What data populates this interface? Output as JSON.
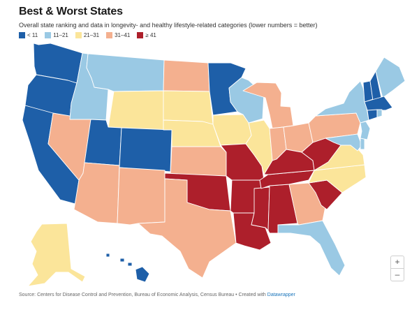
{
  "header": {
    "title": "Best & Worst States",
    "subtitle": "Overall state ranking and data in longevity- and healthy lifestyle-related categories (lower numbers = better)"
  },
  "legend": [
    {
      "label": "< 11",
      "color": "#1e5fa8"
    },
    {
      "label": "11–21",
      "color": "#9ac9e4"
    },
    {
      "label": "21–31",
      "color": "#fbe59a"
    },
    {
      "label": "31–41",
      "color": "#f4b08f"
    },
    {
      "label": "≥ 41",
      "color": "#ad1f2b"
    }
  ],
  "map": {
    "projection": "Albers USA",
    "state_tiers": {
      "WA": 0,
      "OR": 0,
      "CA": 0,
      "UT": 0,
      "CO": 0,
      "MN": 0,
      "VT": 0,
      "NH": 0,
      "MA": 0,
      "HI": 0,
      "CT": 0,
      "ID": 1,
      "MT": 1,
      "WI": 1,
      "NY": 1,
      "ME": 1,
      "RI": 1,
      "NJ": 1,
      "FL": 1,
      "MD": 1,
      "DE": 1,
      "WY": 2,
      "NE": 2,
      "SD": 2,
      "IA": 2,
      "IL": 2,
      "AK": 2,
      "VA": 2,
      "NC": 2,
      "NV": 3,
      "AZ": 3,
      "NM": 3,
      "TX": 3,
      "KS": 3,
      "ND": 3,
      "MI": 3,
      "IN": 3,
      "OH": 3,
      "PA": 3,
      "GA": 3,
      "MO": 4,
      "AR": 4,
      "LA": 4,
      "MS": 4,
      "AL": 4,
      "TN": 4,
      "KY": 4,
      "WV": 4,
      "OK": 4,
      "SC": 4
    }
  },
  "zoom": {
    "in_label": "+",
    "out_label": "–"
  },
  "footer": {
    "source_text": "Source: Centers for Disease Control and Prevention, Bureau of Economic Analysis, Census Bureau • Created with",
    "link_text": "Datawrapper"
  }
}
